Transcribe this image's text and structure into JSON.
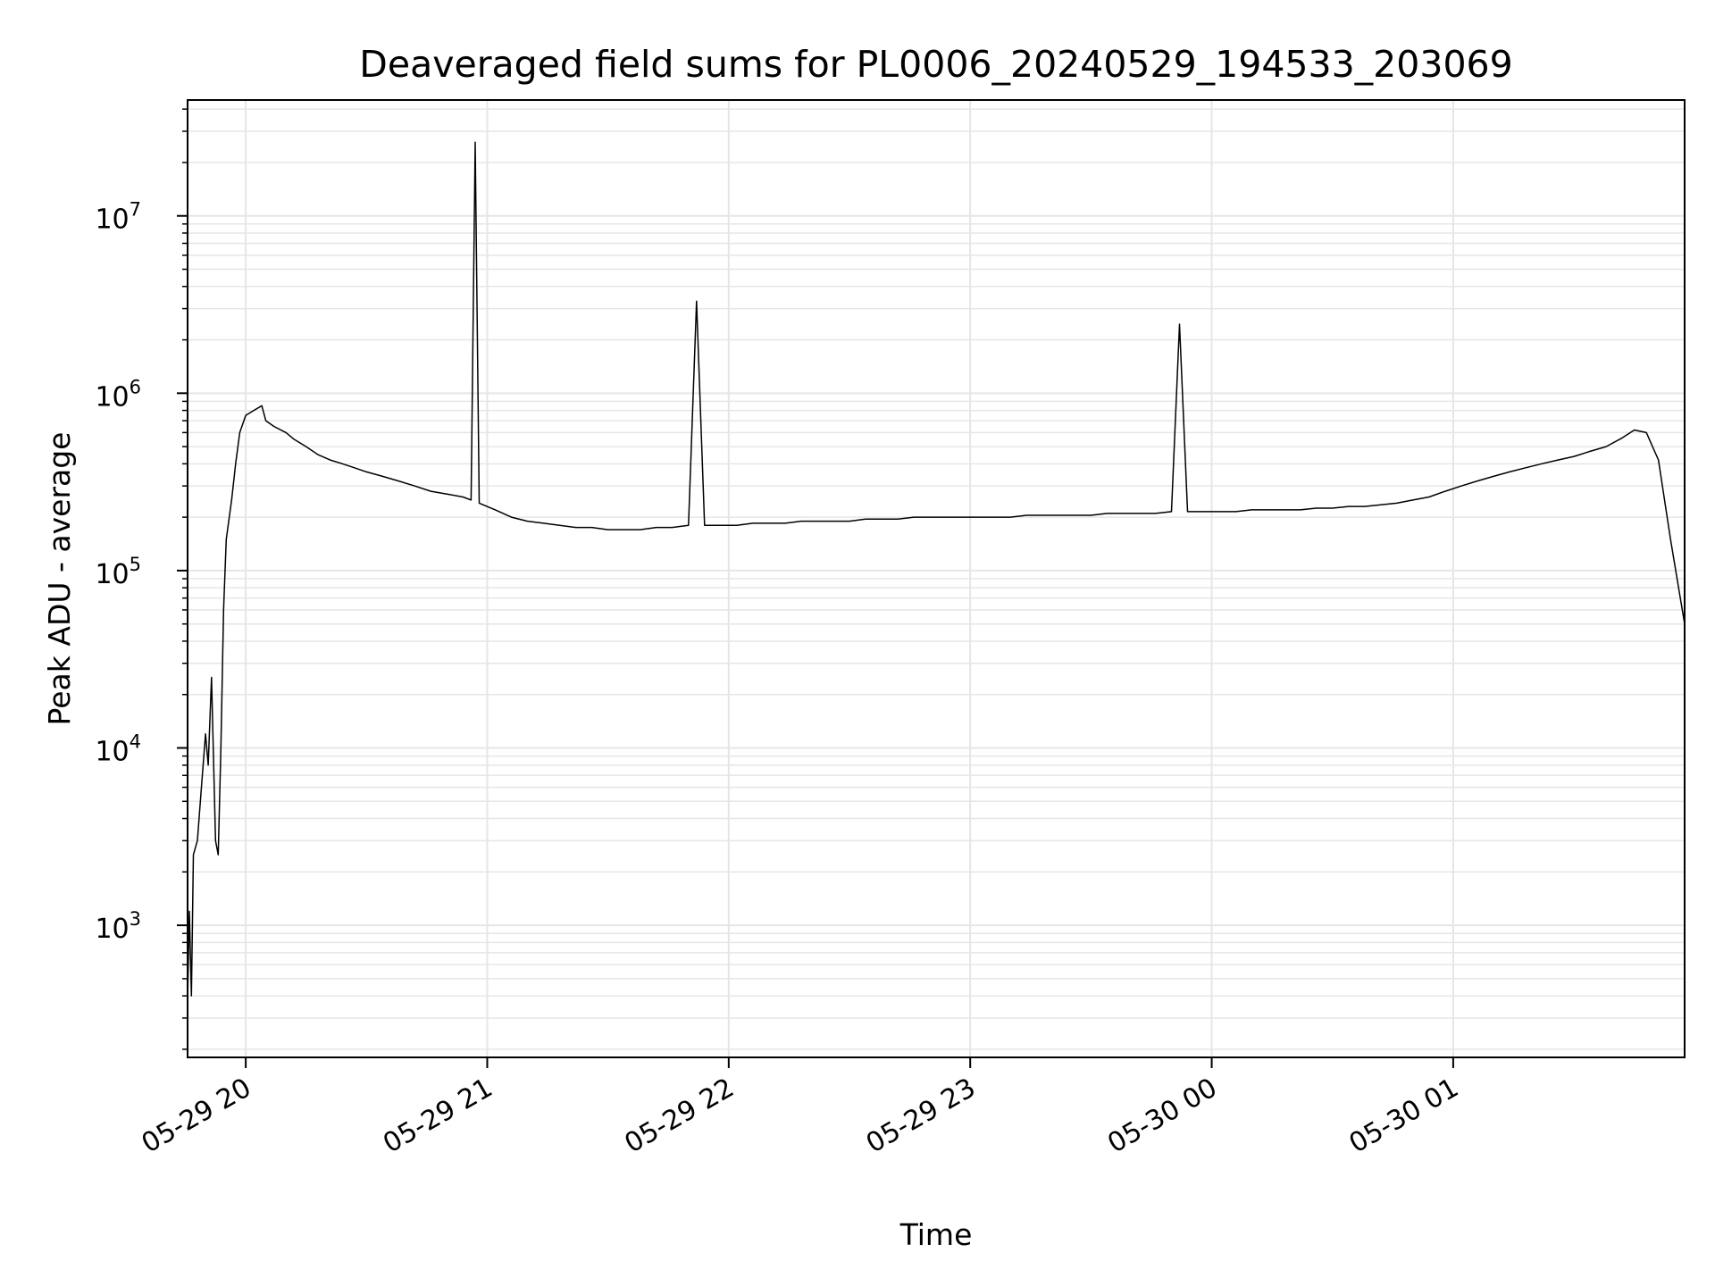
{
  "chart_data": {
    "type": "line",
    "title": "Deaveraged field sums for PL0006_20240529_194533_203069",
    "xlabel": "Time",
    "ylabel": "Peak ADU - average",
    "y_scale": "log",
    "ylim": [
      180,
      45000000
    ],
    "xlim": [
      "2024-05-29 19:45:33",
      "2024-05-30 01:57:30"
    ],
    "x_ticks": [
      {
        "value": "2024-05-29 20:00",
        "label": "05-29 20"
      },
      {
        "value": "2024-05-29 21:00",
        "label": "05-29 21"
      },
      {
        "value": "2024-05-29 22:00",
        "label": "05-29 22"
      },
      {
        "value": "2024-05-29 23:00",
        "label": "05-29 23"
      },
      {
        "value": "2024-05-30 00:00",
        "label": "05-30 00"
      },
      {
        "value": "2024-05-30 01:00",
        "label": "05-30 01"
      }
    ],
    "y_ticks": [
      {
        "value": 1000,
        "base": "10",
        "exp": "3"
      },
      {
        "value": 10000,
        "base": "10",
        "exp": "4"
      },
      {
        "value": 100000,
        "base": "10",
        "exp": "5"
      },
      {
        "value": 1000000,
        "base": "10",
        "exp": "6"
      },
      {
        "value": 10000000,
        "base": "10",
        "exp": "7"
      }
    ],
    "grid": true,
    "line_color": "#000000",
    "series": [
      {
        "x": [
          "2024-05-29 19:45:33",
          "2024-05-29 19:46:00",
          "2024-05-29 19:46:30",
          "2024-05-29 19:47:00",
          "2024-05-29 19:48:00",
          "2024-05-29 19:49:00",
          "2024-05-29 19:50:00",
          "2024-05-29 19:50:40",
          "2024-05-29 19:51:30",
          "2024-05-29 19:52:30",
          "2024-05-29 19:53:10",
          "2024-05-29 19:53:50",
          "2024-05-29 19:54:30",
          "2024-05-29 19:55:10",
          "2024-05-29 19:56:30",
          "2024-05-29 19:57:30",
          "2024-05-29 19:58:30",
          "2024-05-29 20:00:00",
          "2024-05-29 20:02:00",
          "2024-05-29 20:04:00",
          "2024-05-29 20:05:00",
          "2024-05-29 20:07:00",
          "2024-05-29 20:10:00",
          "2024-05-29 20:12:00",
          "2024-05-29 20:15:00",
          "2024-05-29 20:18:00",
          "2024-05-29 20:21:00",
          "2024-05-29 20:24:00",
          "2024-05-29 20:27:00",
          "2024-05-29 20:30:00",
          "2024-05-29 20:34:00",
          "2024-05-29 20:38:00",
          "2024-05-29 20:42:00",
          "2024-05-29 20:46:00",
          "2024-05-29 20:50:00",
          "2024-05-29 20:54:00",
          "2024-05-29 20:56:00",
          "2024-05-29 20:57:00",
          "2024-05-29 20:58:00",
          "2024-05-29 21:02:00",
          "2024-05-29 21:06:00",
          "2024-05-29 21:10:00",
          "2024-05-29 21:14:00",
          "2024-05-29 21:18:00",
          "2024-05-29 21:22:00",
          "2024-05-29 21:26:00",
          "2024-05-29 21:30:00",
          "2024-05-29 21:34:00",
          "2024-05-29 21:38:00",
          "2024-05-29 21:42:00",
          "2024-05-29 21:46:00",
          "2024-05-29 21:50:00",
          "2024-05-29 21:52:00",
          "2024-05-29 21:54:00",
          "2024-05-29 21:58:00",
          "2024-05-29 22:02:00",
          "2024-05-29 22:06:00",
          "2024-05-29 22:10:00",
          "2024-05-29 22:14:00",
          "2024-05-29 22:18:00",
          "2024-05-29 22:22:00",
          "2024-05-29 22:26:00",
          "2024-05-29 22:30:00",
          "2024-05-29 22:34:00",
          "2024-05-29 22:38:00",
          "2024-05-29 22:42:00",
          "2024-05-29 22:46:00",
          "2024-05-29 22:50:00",
          "2024-05-29 22:54:00",
          "2024-05-29 22:58:00",
          "2024-05-29 23:02:00",
          "2024-05-29 23:06:00",
          "2024-05-29 23:10:00",
          "2024-05-29 23:14:00",
          "2024-05-29 23:18:00",
          "2024-05-29 23:22:00",
          "2024-05-29 23:26:00",
          "2024-05-29 23:30:00",
          "2024-05-29 23:34:00",
          "2024-05-29 23:38:00",
          "2024-05-29 23:42:00",
          "2024-05-29 23:46:00",
          "2024-05-29 23:50:00",
          "2024-05-29 23:52:00",
          "2024-05-29 23:54:00",
          "2024-05-29 23:58:00",
          "2024-05-30 00:02:00",
          "2024-05-30 00:06:00",
          "2024-05-30 00:10:00",
          "2024-05-30 00:14:00",
          "2024-05-30 00:18:00",
          "2024-05-30 00:22:00",
          "2024-05-30 00:26:00",
          "2024-05-30 00:30:00",
          "2024-05-30 00:34:00",
          "2024-05-30 00:38:00",
          "2024-05-30 00:42:00",
          "2024-05-30 00:46:00",
          "2024-05-30 00:50:00",
          "2024-05-30 00:54:00",
          "2024-05-30 00:58:00",
          "2024-05-30 01:02:00",
          "2024-05-30 01:06:00",
          "2024-05-30 01:10:00",
          "2024-05-30 01:14:00",
          "2024-05-30 01:18:00",
          "2024-05-30 01:22:00",
          "2024-05-30 01:26:00",
          "2024-05-30 01:30:00",
          "2024-05-30 01:34:00",
          "2024-05-30 01:38:00",
          "2024-05-30 01:42:00",
          "2024-05-30 01:45:00",
          "2024-05-30 01:48:00",
          "2024-05-30 01:51:00",
          "2024-05-30 01:54:00",
          "2024-05-30 01:57:30"
        ],
        "y": [
          380,
          1200,
          400,
          2500,
          3000,
          6000,
          12000,
          8000,
          25000,
          3000,
          2500,
          10000,
          60000,
          150000,
          250000,
          400000,
          600000,
          750000,
          800000,
          850000,
          700000,
          650000,
          600000,
          550000,
          500000,
          450000,
          420000,
          400000,
          380000,
          360000,
          340000,
          320000,
          300000,
          280000,
          270000,
          260000,
          250000,
          26000000,
          240000,
          220000,
          200000,
          190000,
          185000,
          180000,
          175000,
          175000,
          170000,
          170000,
          170000,
          175000,
          175000,
          180000,
          3300000,
          180000,
          180000,
          180000,
          185000,
          185000,
          185000,
          190000,
          190000,
          190000,
          190000,
          195000,
          195000,
          195000,
          200000,
          200000,
          200000,
          200000,
          200000,
          200000,
          200000,
          205000,
          205000,
          205000,
          205000,
          205000,
          210000,
          210000,
          210000,
          210000,
          215000,
          2450000,
          215000,
          215000,
          215000,
          215000,
          220000,
          220000,
          220000,
          220000,
          225000,
          225000,
          230000,
          230000,
          235000,
          240000,
          250000,
          260000,
          280000,
          300000,
          320000,
          340000,
          360000,
          380000,
          400000,
          420000,
          440000,
          470000,
          500000,
          560000,
          620000,
          600000,
          420000,
          150000,
          50000
        ]
      }
    ]
  }
}
